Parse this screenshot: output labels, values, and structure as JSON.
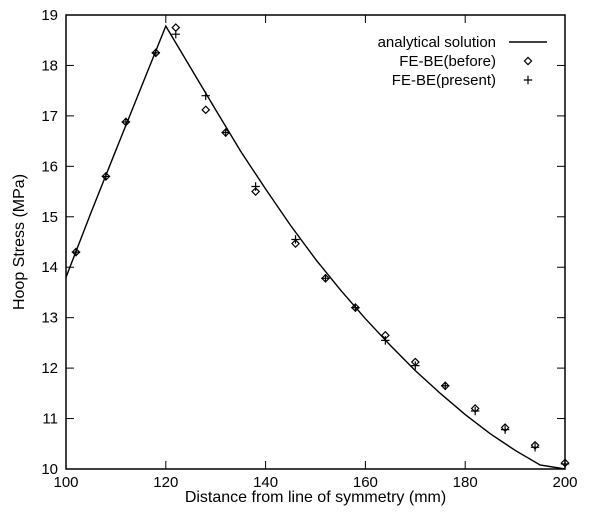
{
  "chart_data": {
    "type": "line",
    "title": "",
    "xlabel": "Distance from line of symmetry (mm)",
    "ylabel": "Hoop Stress (MPa)",
    "xlim": [
      100,
      200
    ],
    "ylim": [
      10,
      19
    ],
    "xticks": [
      100,
      120,
      140,
      160,
      180,
      200
    ],
    "yticks": [
      10,
      11,
      12,
      13,
      14,
      15,
      16,
      17,
      18,
      19
    ],
    "grid": false,
    "legend_position": "top-right",
    "series": [
      {
        "name": "analytical solution",
        "style": "line",
        "color": "#000000",
        "x": [
          100,
          105,
          110,
          115,
          120,
          125,
          130,
          135,
          140,
          145,
          150,
          155,
          160,
          165,
          170,
          175,
          180,
          185,
          190,
          195,
          200
        ],
        "y": [
          13.8,
          15.08,
          16.32,
          17.55,
          18.78,
          17.95,
          17.12,
          16.3,
          15.55,
          14.83,
          14.16,
          13.55,
          12.98,
          12.45,
          11.95,
          11.5,
          11.08,
          10.7,
          10.37,
          10.08,
          10.0
        ]
      },
      {
        "name": "FE-BE(before)",
        "style": "diamond",
        "color": "#000000",
        "x": [
          102,
          108,
          112,
          118,
          122,
          128,
          132,
          138,
          146,
          152,
          158,
          164,
          170,
          176,
          182,
          188,
          194,
          200
        ],
        "y": [
          14.3,
          15.8,
          16.88,
          18.25,
          18.75,
          17.12,
          16.67,
          15.5,
          14.47,
          13.78,
          13.2,
          12.65,
          12.12,
          11.65,
          11.2,
          10.82,
          10.47,
          10.12
        ]
      },
      {
        "name": "FE-BE(present)",
        "style": "plus",
        "color": "#000000",
        "x": [
          102,
          108,
          112,
          118,
          122,
          128,
          132,
          138,
          146,
          152,
          158,
          164,
          170,
          176,
          182,
          188,
          194,
          200
        ],
        "y": [
          14.3,
          15.8,
          16.88,
          18.25,
          18.62,
          17.4,
          16.67,
          15.6,
          14.55,
          13.78,
          13.2,
          12.55,
          12.05,
          11.65,
          11.15,
          10.78,
          10.43,
          10.1
        ]
      }
    ]
  }
}
